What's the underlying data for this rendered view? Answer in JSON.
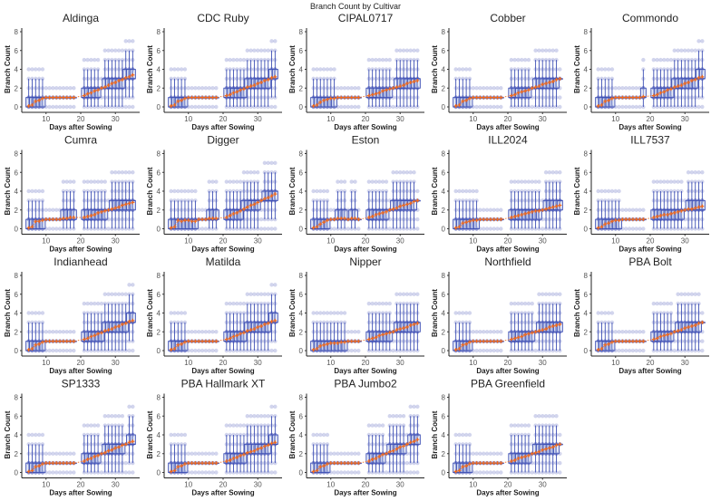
{
  "chart_data": {
    "type": "box",
    "title": "Branch Count by Cultivar",
    "xlabel": "Days after Sowing",
    "ylabel": "Branch Count",
    "xticks": [
      10,
      20,
      30
    ],
    "yticks": [
      0,
      2,
      4,
      6,
      8
    ],
    "xlim": [
      3,
      37
    ],
    "ylim": [
      0,
      8
    ],
    "colors": {
      "box": "#3f51b5",
      "fill": "#c9d3ee",
      "point": "#6b74c4",
      "mean": "#f26b1d"
    },
    "days": [
      5,
      6,
      7,
      8,
      9,
      10,
      11,
      12,
      13,
      14,
      15,
      16,
      17,
      18,
      21,
      22,
      23,
      24,
      25,
      26,
      27,
      28,
      29,
      30,
      31,
      32,
      33,
      34,
      35
    ],
    "panels": [
      {
        "name": "Aldinga",
        "mean": [
          0.1,
          0.2,
          0.6,
          0.7,
          0.9,
          1.0,
          1.0,
          1.0,
          1.0,
          1.0,
          1.0,
          1.0,
          1.0,
          1.0,
          1.2,
          1.4,
          1.5,
          1.7,
          1.8,
          2.0,
          2.1,
          2.3,
          2.5,
          2.6,
          2.8,
          2.9,
          3.1,
          3.2,
          3.4
        ]
      },
      {
        "name": "CDC Ruby",
        "mean": [
          0.1,
          0.2,
          0.6,
          0.7,
          0.9,
          1.0,
          1.0,
          1.0,
          1.0,
          1.0,
          1.0,
          1.0,
          1.0,
          1.0,
          1.2,
          1.3,
          1.5,
          1.6,
          1.8,
          1.9,
          2.1,
          2.2,
          2.3,
          2.5,
          2.6,
          2.8,
          2.9,
          3.1,
          3.2
        ]
      },
      {
        "name": "CIPAL0717",
        "mean": [
          0.1,
          0.2,
          0.5,
          0.7,
          0.8,
          0.9,
          0.9,
          1.0,
          1.0,
          1.0,
          1.0,
          1.0,
          1.0,
          1.0,
          1.2,
          1.3,
          1.4,
          1.5,
          1.7,
          1.8,
          1.9,
          2.0,
          2.1,
          2.2,
          2.3,
          2.5,
          2.6,
          2.7,
          2.8
        ]
      },
      {
        "name": "Cobber",
        "mean": [
          0.1,
          0.2,
          0.6,
          0.7,
          0.9,
          1.0,
          1.0,
          1.0,
          1.0,
          1.0,
          1.0,
          1.0,
          1.0,
          1.0,
          1.2,
          1.3,
          1.5,
          1.6,
          1.7,
          1.8,
          2.0,
          2.1,
          2.2,
          2.4,
          2.5,
          2.6,
          2.7,
          2.9,
          3.0
        ]
      },
      {
        "name": "Commondo",
        "mean": [
          0.1,
          0.2,
          0.6,
          0.7,
          0.9,
          1.0,
          1.0,
          1.0,
          1.0,
          1.0,
          1.0,
          1.0,
          1.0,
          1.1,
          1.2,
          1.3,
          1.5,
          1.6,
          1.8,
          1.9,
          2.1,
          2.2,
          2.3,
          2.5,
          2.6,
          2.8,
          2.9,
          3.1,
          3.2
        ]
      },
      {
        "name": "Cumra",
        "mean": [
          0.1,
          0.2,
          0.8,
          0.8,
          0.9,
          1.0,
          1.0,
          1.0,
          1.0,
          1.0,
          1.1,
          1.1,
          1.2,
          1.2,
          1.2,
          1.3,
          1.4,
          1.5,
          1.7,
          1.8,
          1.9,
          2.0,
          2.1,
          2.2,
          2.3,
          2.5,
          2.6,
          2.7,
          2.8
        ]
      },
      {
        "name": "Digger",
        "mean": [
          0.1,
          0.2,
          0.9,
          0.8,
          0.9,
          0.9,
          0.8,
          0.8,
          1.0,
          1.0,
          1.0,
          1.1,
          1.1,
          1.1,
          1.2,
          1.4,
          1.6,
          1.7,
          1.9,
          2.1,
          2.3,
          2.5,
          2.6,
          2.8,
          3.0,
          3.2,
          3.3,
          3.5,
          3.7
        ]
      },
      {
        "name": "Eston",
        "mean": [
          0.1,
          0.2,
          0.5,
          0.7,
          0.9,
          1.0,
          1.0,
          1.1,
          1.1,
          1.1,
          1.0,
          1.1,
          1.1,
          1.0,
          1.2,
          1.3,
          1.5,
          1.6,
          1.7,
          1.8,
          2.0,
          2.1,
          2.2,
          2.4,
          2.5,
          2.6,
          2.7,
          2.9,
          3.0
        ]
      },
      {
        "name": "ILL2024",
        "mean": [
          0.1,
          0.2,
          0.6,
          0.7,
          0.8,
          0.9,
          0.9,
          1.0,
          1.0,
          1.0,
          1.0,
          1.0,
          1.0,
          1.0,
          1.2,
          1.3,
          1.4,
          1.5,
          1.6,
          1.7,
          1.8,
          1.9,
          1.9,
          2.0,
          2.1,
          2.2,
          2.3,
          2.4,
          2.5
        ]
      },
      {
        "name": "ILL7537",
        "mean": [
          0.1,
          0.2,
          0.5,
          0.6,
          0.8,
          0.9,
          0.9,
          1.0,
          1.0,
          1.0,
          1.0,
          1.0,
          1.0,
          1.0,
          1.2,
          1.3,
          1.4,
          1.5,
          1.5,
          1.6,
          1.7,
          1.8,
          1.9,
          2.0,
          2.1,
          2.1,
          2.2,
          2.3,
          2.4
        ]
      },
      {
        "name": "Indianhead",
        "mean": [
          0.1,
          0.2,
          0.6,
          0.7,
          0.9,
          1.0,
          1.0,
          1.0,
          1.0,
          1.0,
          1.0,
          1.0,
          1.0,
          1.0,
          1.2,
          1.3,
          1.5,
          1.6,
          1.8,
          1.9,
          2.1,
          2.2,
          2.3,
          2.5,
          2.6,
          2.8,
          2.9,
          3.1,
          3.2
        ]
      },
      {
        "name": "Matilda",
        "mean": [
          0.1,
          0.2,
          0.6,
          0.7,
          0.9,
          1.0,
          1.0,
          1.0,
          1.0,
          1.0,
          1.0,
          1.0,
          1.0,
          1.0,
          1.2,
          1.3,
          1.5,
          1.6,
          1.8,
          1.9,
          2.1,
          2.2,
          2.3,
          2.5,
          2.6,
          2.8,
          2.9,
          3.1,
          3.2
        ]
      },
      {
        "name": "Nipper",
        "mean": [
          0.1,
          0.2,
          0.5,
          0.6,
          0.7,
          0.8,
          0.8,
          0.8,
          0.9,
          0.9,
          1.0,
          1.0,
          1.0,
          1.0,
          1.2,
          1.3,
          1.4,
          1.6,
          1.7,
          1.8,
          1.9,
          2.0,
          2.2,
          2.3,
          2.4,
          2.5,
          2.7,
          2.8,
          2.9
        ]
      },
      {
        "name": "Northfield",
        "mean": [
          0.1,
          0.2,
          0.6,
          0.7,
          0.9,
          1.0,
          1.0,
          1.0,
          1.0,
          1.0,
          1.0,
          1.0,
          1.0,
          1.0,
          1.2,
          1.3,
          1.4,
          1.5,
          1.7,
          1.8,
          1.9,
          2.0,
          2.1,
          2.2,
          2.3,
          2.5,
          2.6,
          2.7,
          2.8
        ]
      },
      {
        "name": "PBA Bolt",
        "mean": [
          0.1,
          0.2,
          0.6,
          0.7,
          0.9,
          1.0,
          1.0,
          1.0,
          1.0,
          1.0,
          1.0,
          1.0,
          1.0,
          1.0,
          1.2,
          1.3,
          1.5,
          1.6,
          1.7,
          1.8,
          2.0,
          2.1,
          2.2,
          2.4,
          2.5,
          2.6,
          2.7,
          2.9,
          3.0
        ]
      },
      {
        "name": "SP1333",
        "mean": [
          0.1,
          0.2,
          0.6,
          0.7,
          0.9,
          1.0,
          1.0,
          1.0,
          1.0,
          1.0,
          1.0,
          1.0,
          1.0,
          1.0,
          1.2,
          1.4,
          1.5,
          1.7,
          1.8,
          2.0,
          2.1,
          2.3,
          2.4,
          2.6,
          2.7,
          2.9,
          3.0,
          3.2,
          3.3
        ]
      },
      {
        "name": "PBA Hallmark XT",
        "mean": [
          0.1,
          0.2,
          0.6,
          0.7,
          0.9,
          1.0,
          1.0,
          1.0,
          1.0,
          1.0,
          1.0,
          1.0,
          1.0,
          1.0,
          1.2,
          1.3,
          1.5,
          1.6,
          1.8,
          1.9,
          2.1,
          2.2,
          2.3,
          2.5,
          2.6,
          2.8,
          2.9,
          3.1,
          3.2
        ]
      },
      {
        "name": "PBA Jumbo2",
        "mean": [
          0.1,
          0.2,
          0.6,
          0.7,
          0.9,
          1.0,
          1.0,
          1.0,
          1.0,
          1.0,
          1.0,
          1.0,
          1.0,
          1.0,
          1.2,
          1.4,
          1.5,
          1.7,
          1.9,
          2.0,
          2.2,
          2.3,
          2.5,
          2.7,
          2.8,
          3.0,
          3.2,
          3.3,
          3.5
        ]
      },
      {
        "name": "PBA Greenfield",
        "mean": [
          0.1,
          0.2,
          0.6,
          0.7,
          0.9,
          1.0,
          1.0,
          1.0,
          1.0,
          1.0,
          1.0,
          1.0,
          1.0,
          1.0,
          1.2,
          1.3,
          1.5,
          1.6,
          1.7,
          1.8,
          2.0,
          2.1,
          2.2,
          2.4,
          2.5,
          2.6,
          2.7,
          2.9,
          3.0
        ]
      }
    ]
  }
}
